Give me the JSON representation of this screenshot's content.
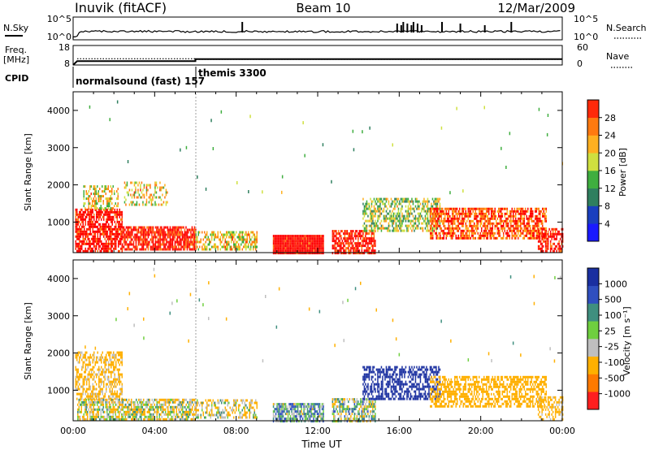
{
  "header": {
    "station": "Inuvik (fitACF)",
    "beam": "Beam 10",
    "date": "12/Mar/2009"
  },
  "chart_data": [
    {
      "type": "line",
      "panel": "noise",
      "left_label": "N.Sky",
      "right_label": "N.Search",
      "left_ticks": [
        "10^5",
        "10^0"
      ],
      "right_ticks": [
        "10^5",
        "10^0"
      ],
      "xlim": [
        0,
        24
      ],
      "spike_hours": [
        8.3,
        15.9,
        16.1,
        16.2,
        16.4,
        16.6,
        16.7,
        16.9,
        17.1,
        18.1,
        19.0,
        20.2,
        21.5
      ]
    },
    {
      "type": "line",
      "panel": "frequency",
      "left_label_line1": "Freq.",
      "left_label_line2": "[MHz]",
      "right_label": "Nave",
      "left_ticks": [
        "18",
        "8"
      ],
      "right_ticks": [
        "60",
        "0"
      ],
      "ylim": [
        8,
        18
      ],
      "series": [
        {
          "role": "freq",
          "x": [
            0,
            0.2,
            6.0,
            6.0,
            24
          ],
          "y": [
            8,
            10,
            10,
            11,
            11
          ]
        },
        {
          "role": "nave",
          "x": [
            0.2,
            6.0,
            6.0,
            24
          ],
          "y": [
            11.2,
            11.2,
            10.9,
            10.9
          ]
        }
      ]
    },
    {
      "type": "table",
      "panel": "cpid",
      "label": "CPID",
      "segments": [
        {
          "name": "normalsound (fast) 157",
          "start": 0,
          "end": 6
        },
        {
          "name": "themis 3300",
          "start": 6,
          "end": 24
        }
      ]
    },
    {
      "type": "heatmap",
      "panel": "power",
      "ylabel": "Slant Range [km]",
      "yticks": [
        1000,
        2000,
        3000,
        4000
      ],
      "ylim": [
        180,
        4500
      ],
      "xlim": [
        0,
        24
      ],
      "colorbar": {
        "label": "Power [dB]",
        "ticks": [
          "4",
          "8",
          "12",
          "16",
          "20",
          "24",
          "28"
        ]
      },
      "regions": [
        {
          "t0": 0.1,
          "t1": 2.4,
          "r0": 250,
          "r1": 1400,
          "v": 28,
          "d": 0.7
        },
        {
          "t0": 0.5,
          "t1": 2.2,
          "r0": 1400,
          "r1": 2000,
          "v": 18,
          "d": 0.5
        },
        {
          "t0": 2.4,
          "t1": 6.0,
          "r0": 300,
          "r1": 900,
          "v": 27,
          "d": 0.8
        },
        {
          "t0": 2.5,
          "t1": 4.6,
          "r0": 1500,
          "r1": 2100,
          "v": 18,
          "d": 0.35
        },
        {
          "t0": 6.0,
          "t1": 9.0,
          "r0": 300,
          "r1": 800,
          "v": 18,
          "d": 0.55
        },
        {
          "t0": 9.8,
          "t1": 12.3,
          "r0": 200,
          "r1": 700,
          "v": 29,
          "d": 1.0
        },
        {
          "t0": 12.7,
          "t1": 14.8,
          "r0": 200,
          "r1": 800,
          "v": 27,
          "d": 0.75
        },
        {
          "t0": 14.2,
          "t1": 18.0,
          "r0": 800,
          "r1": 1700,
          "v": 15,
          "d": 0.55
        },
        {
          "t0": 17.5,
          "t1": 23.2,
          "r0": 600,
          "r1": 1400,
          "v": 24,
          "d": 0.7
        },
        {
          "t0": 22.8,
          "t1": 24.0,
          "r0": 250,
          "r1": 900,
          "v": 28,
          "d": 0.6
        }
      ]
    },
    {
      "type": "heatmap",
      "panel": "velocity",
      "ylabel": "Slant Range [km]",
      "yticks": [
        1000,
        2000,
        3000,
        4000
      ],
      "ylim": [
        180,
        4500
      ],
      "xlim": [
        0,
        24
      ],
      "xticks": [
        "00:00",
        "04:00",
        "08:00",
        "12:00",
        "16:00",
        "20:00",
        "00:00"
      ],
      "xlabel": "Time UT",
      "colorbar": {
        "label": "Velocity [m s⁻¹]",
        "ticks": [
          "1000",
          "500",
          "100",
          "25",
          "-25",
          "-100",
          "-500",
          "-1000"
        ]
      },
      "regions": [
        {
          "t0": 0.1,
          "t1": 2.4,
          "r0": 800,
          "r1": 2100,
          "v": -180,
          "d": 0.55
        },
        {
          "t0": 0.2,
          "t1": 6.0,
          "r0": 250,
          "r1": 800,
          "v": -80,
          "d": 0.7
        },
        {
          "t0": 6.0,
          "t1": 9.0,
          "r0": 300,
          "r1": 800,
          "v": -90,
          "d": 0.5
        },
        {
          "t0": 9.8,
          "t1": 12.3,
          "r0": 200,
          "r1": 700,
          "v": 40,
          "d": 0.8
        },
        {
          "t0": 12.7,
          "t1": 14.8,
          "r0": 200,
          "r1": 800,
          "v": -20,
          "d": 0.7
        },
        {
          "t0": 14.2,
          "t1": 18.0,
          "r0": 800,
          "r1": 1700,
          "v": 700,
          "d": 0.6
        },
        {
          "t0": 17.5,
          "t1": 23.2,
          "r0": 600,
          "r1": 1400,
          "v": -250,
          "d": 0.6
        },
        {
          "t0": 22.8,
          "t1": 24.0,
          "r0": 250,
          "r1": 900,
          "v": -200,
          "d": 0.5
        }
      ]
    }
  ],
  "palettes": {
    "power": [
      "#1a1aff",
      "#1a3fbf",
      "#2f7f5f",
      "#3fae3f",
      "#cfe03f",
      "#ffb020",
      "#ff7a10",
      "#ff2a0a",
      "#ff0000"
    ],
    "velocity_bins": [
      -500,
      -100,
      -25,
      25,
      100,
      500,
      1000000000.0
    ],
    "velocity": [
      "#ff1f1f",
      "#ff7a00",
      "#ffb000",
      "#bfbfbf",
      "#6fcf3f",
      "#3f8f7f",
      "#2f4fbf",
      "#1a2fa0"
    ]
  }
}
